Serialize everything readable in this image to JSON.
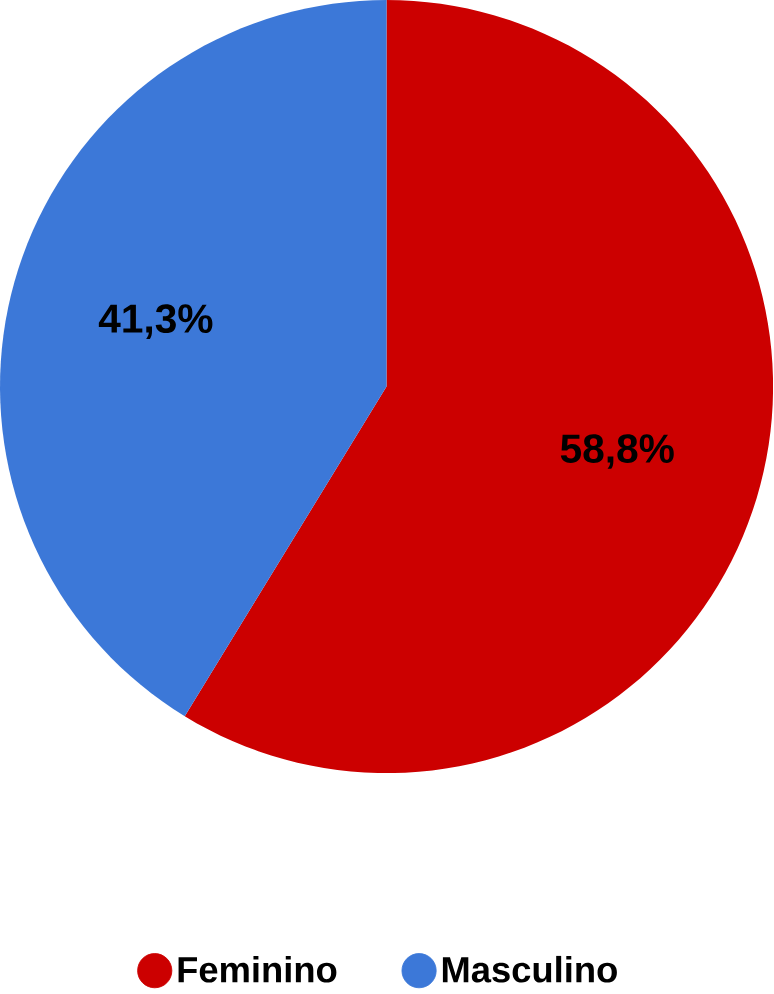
{
  "chart_data": {
    "type": "pie",
    "categories": [
      "Feminino",
      "Masculino"
    ],
    "values": [
      58.8,
      41.3
    ],
    "colors": [
      "#cc0000",
      "#3c78d8"
    ],
    "value_labels": [
      "58,8%",
      "41,3%"
    ],
    "legend": "bottom"
  }
}
